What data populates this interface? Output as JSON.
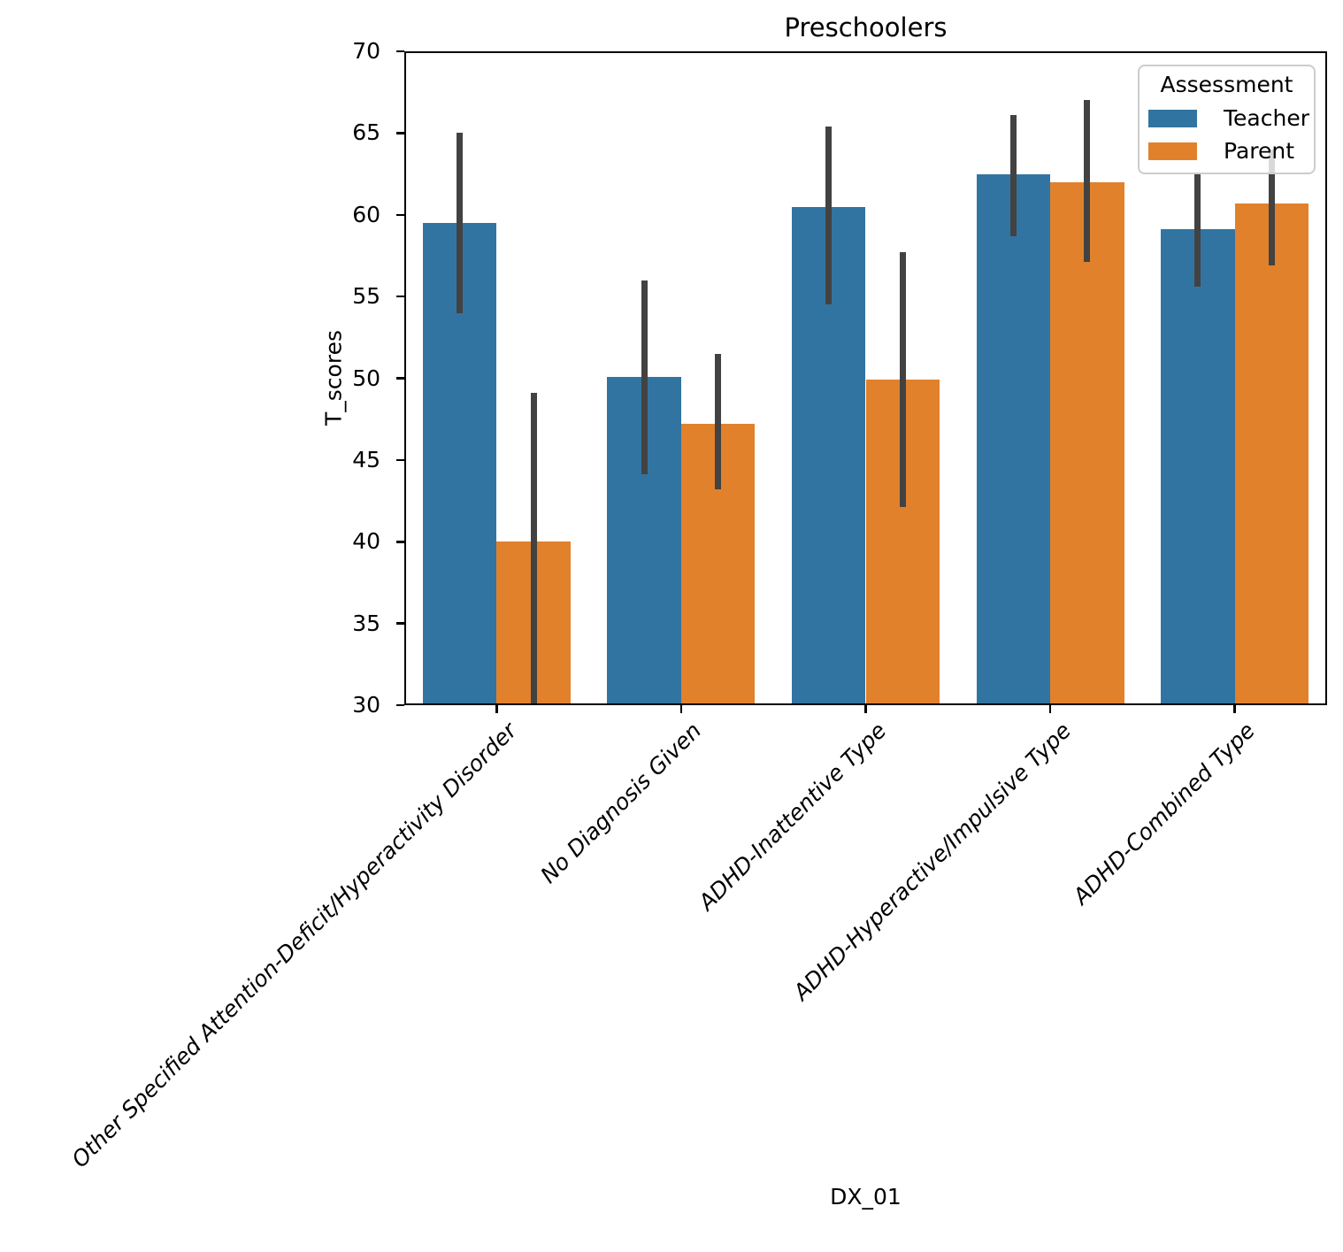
{
  "chart_data": {
    "type": "bar",
    "title": "Preschoolers",
    "xlabel": "DX_01",
    "ylabel": "T_scores",
    "ylim": [
      30,
      70
    ],
    "yticks": [
      30,
      35,
      40,
      45,
      50,
      55,
      60,
      65,
      70
    ],
    "grid": false,
    "categories": [
      "Other Specified Attention-Deficit/Hyperactivity Disorder",
      "No Diagnosis Given",
      "ADHD-Inattentive Type",
      "ADHD-Hyperactive/Impulsive Type",
      "ADHD-Combined Type"
    ],
    "series": [
      {
        "name": "Teacher",
        "color": "#3274a1",
        "values": [
          59.5,
          50.1,
          60.5,
          62.5,
          59.1
        ],
        "error_low": [
          54.0,
          44.1,
          54.5,
          58.7,
          55.6
        ],
        "error_high": [
          65.0,
          56.0,
          65.4,
          66.1,
          62.6
        ]
      },
      {
        "name": "Parent",
        "color": "#e1812c",
        "values": [
          40.0,
          47.2,
          49.9,
          62.0,
          60.7
        ],
        "error_low": [
          30.0,
          43.2,
          42.1,
          57.1,
          56.9
        ],
        "error_high": [
          49.1,
          51.5,
          57.7,
          67.0,
          64.0
        ]
      }
    ],
    "error_bar_color": "#424242",
    "legend": {
      "title": "Assessment",
      "position": "upper right",
      "entries": [
        "Teacher",
        "Parent"
      ]
    }
  }
}
